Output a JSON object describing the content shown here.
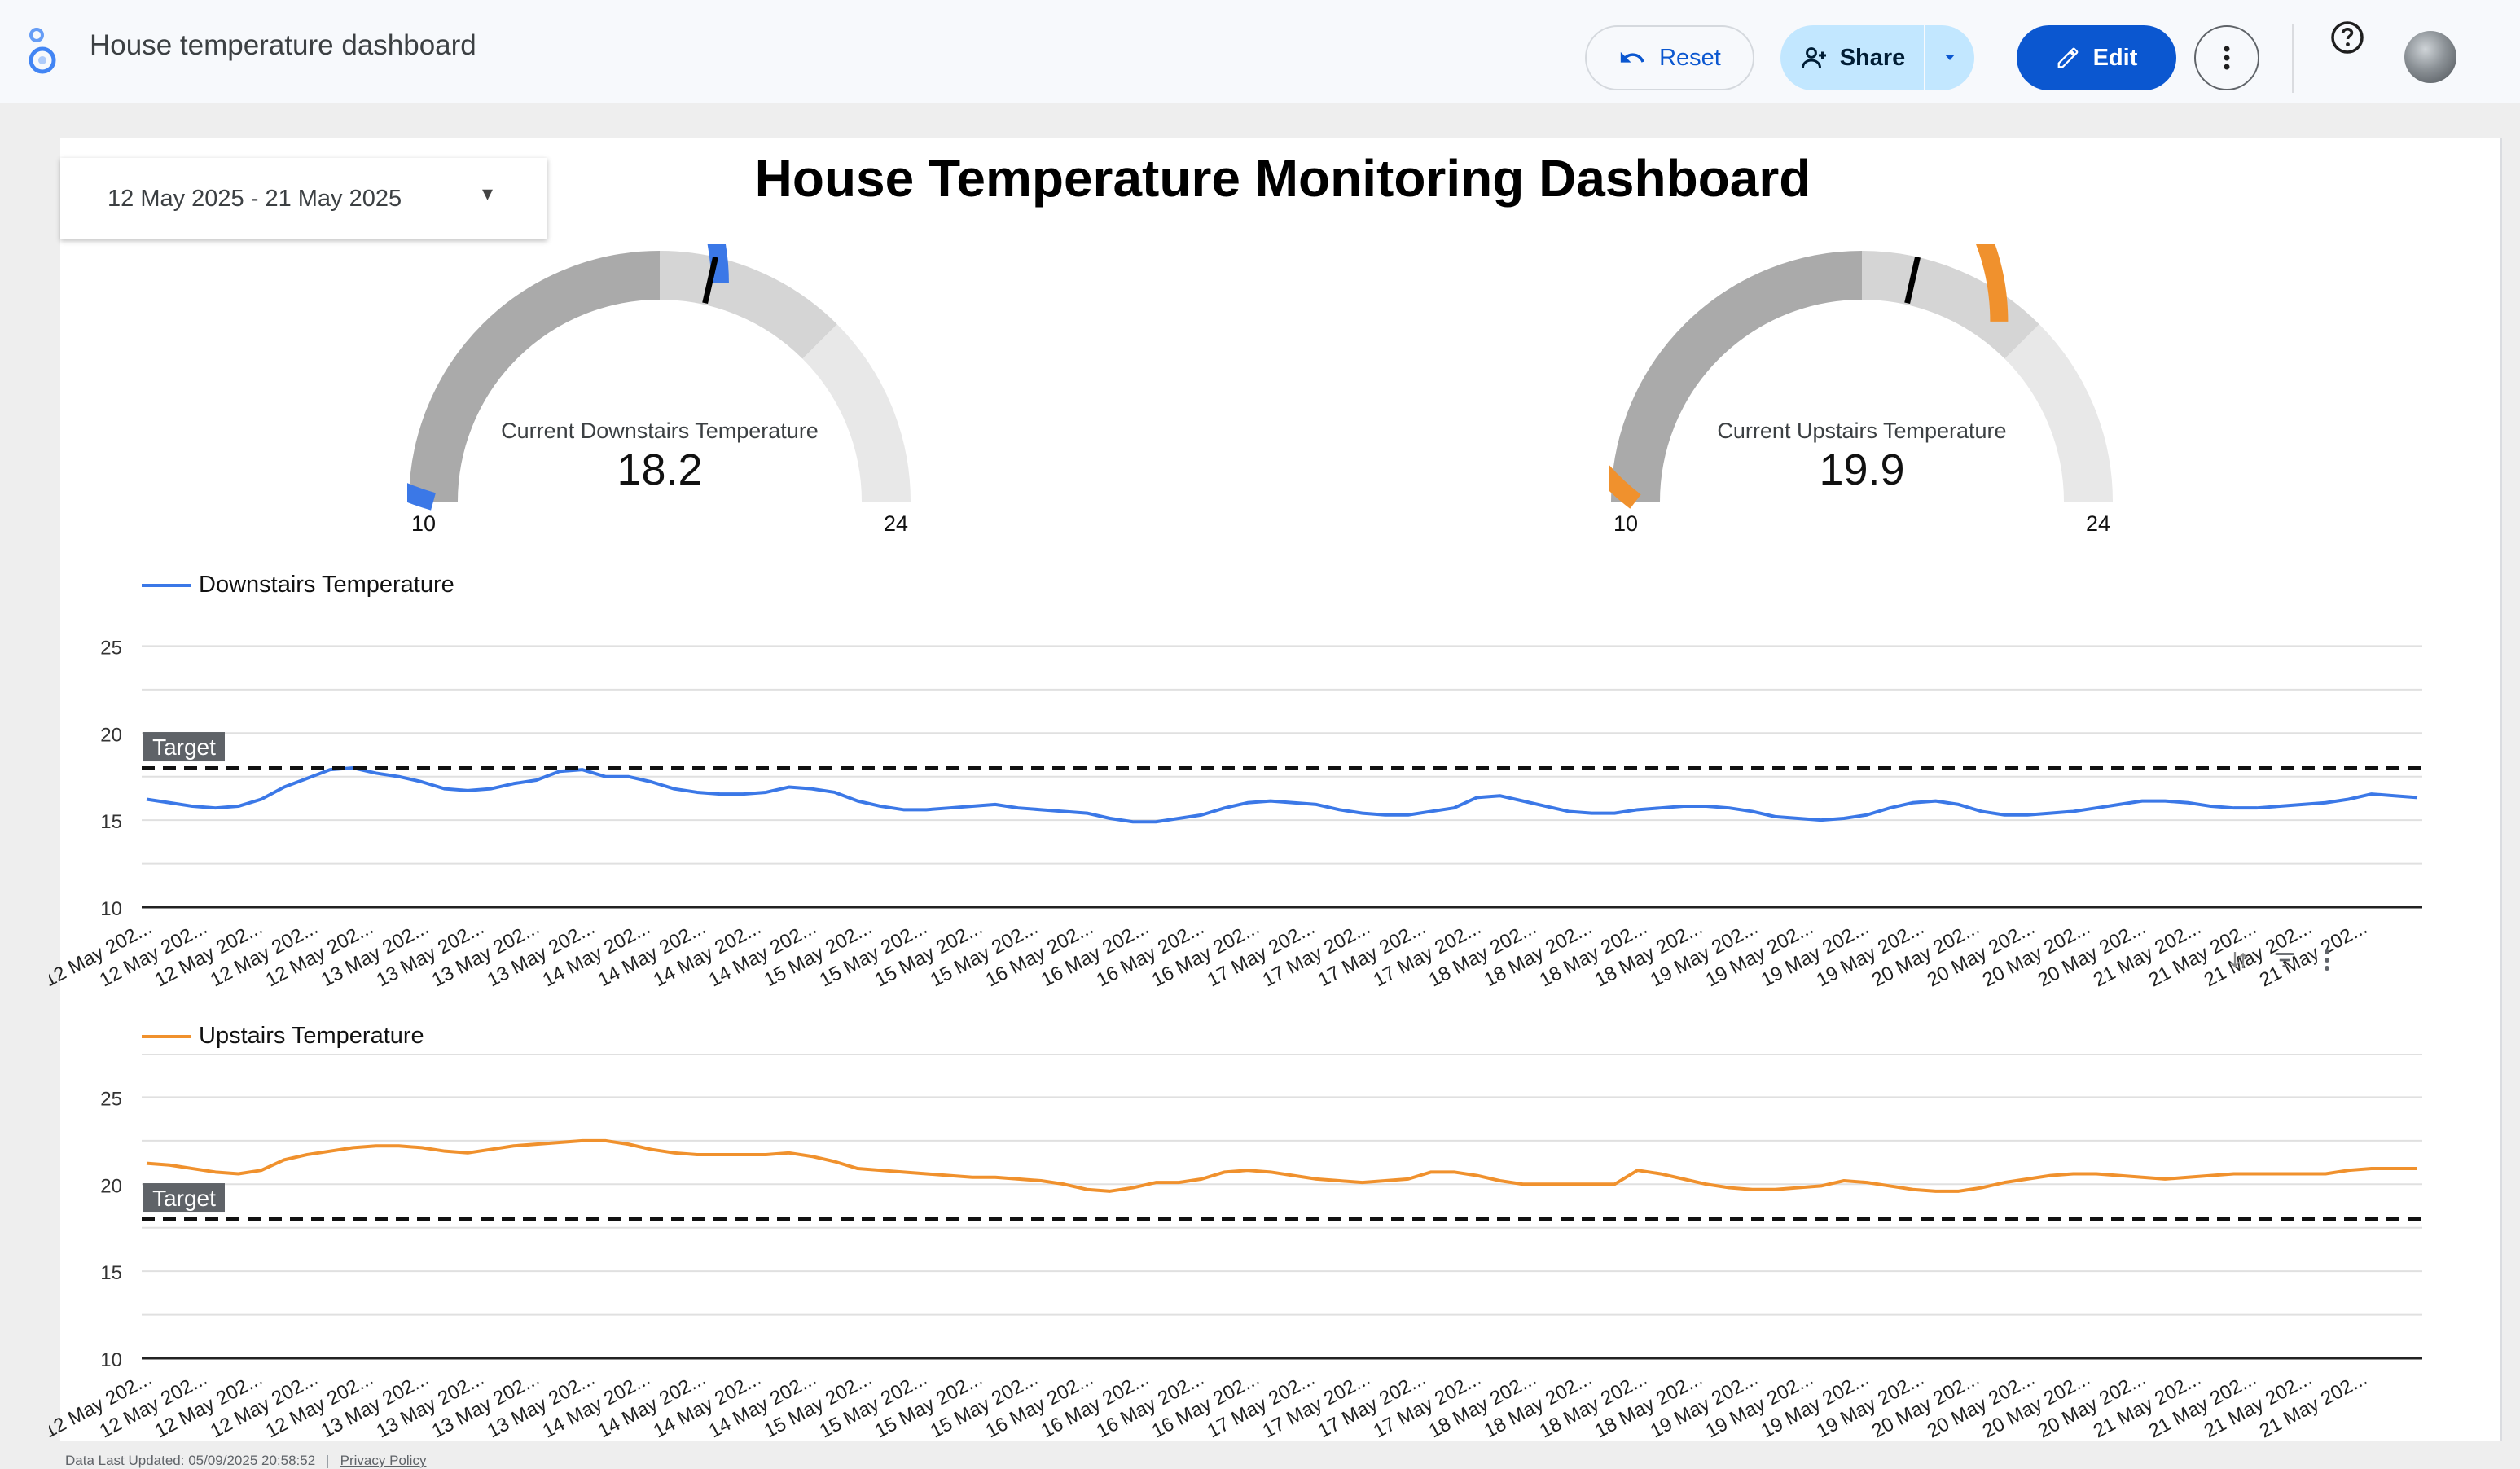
{
  "app": {
    "title": "House temperature dashboard",
    "buttons": {
      "reset": "Reset",
      "share": "Share",
      "edit": "Edit"
    },
    "icons": [
      "looker-studio-logo-icon",
      "undo-icon",
      "person-add-icon",
      "caret-down-icon",
      "pencil-icon",
      "more-vert-icon",
      "help-icon",
      "avatar"
    ]
  },
  "report": {
    "title": "House Temperature Monitoring Dashboard",
    "date_range": "12 May 2025 - 21 May 2025",
    "footer": {
      "updated": "Data Last Updated: 05/09/2025 20:58:52",
      "privacy": "Privacy Policy"
    }
  },
  "gauges": [
    {
      "label": "Current Downstairs Temperature",
      "value": 18.2,
      "value_text": "18.2",
      "min": 10,
      "max": 24,
      "min_text": "10",
      "max_text": "24",
      "target": 18.0,
      "color": "#3b78e7"
    },
    {
      "label": "Current Upstairs Temperature",
      "value": 19.9,
      "value_text": "19.9",
      "min": 10,
      "max": 24,
      "min_text": "10",
      "max_text": "24",
      "target": 18.0,
      "color": "#f0912d"
    }
  ],
  "chart_data": [
    {
      "type": "line",
      "series": [
        {
          "name": "Downstairs Temperature",
          "color": "#3b78e7",
          "values": [
            16.2,
            16.0,
            15.8,
            15.7,
            15.8,
            16.2,
            16.9,
            17.4,
            17.9,
            18.0,
            17.7,
            17.5,
            17.2,
            16.8,
            16.7,
            16.8,
            17.1,
            17.3,
            17.8,
            17.9,
            17.5,
            17.5,
            17.2,
            16.8,
            16.6,
            16.5,
            16.5,
            16.6,
            16.9,
            16.8,
            16.6,
            16.1,
            15.8,
            15.6,
            15.6,
            15.7,
            15.8,
            15.9,
            15.7,
            15.6,
            15.5,
            15.4,
            15.1,
            14.9,
            14.9,
            15.1,
            15.3,
            15.7,
            16.0,
            16.1,
            16.0,
            15.9,
            15.6,
            15.4,
            15.3,
            15.3,
            15.5,
            15.7,
            16.3,
            16.4,
            16.1,
            15.8,
            15.5,
            15.4,
            15.4,
            15.6,
            15.7,
            15.8,
            15.8,
            15.7,
            15.5,
            15.2,
            15.1,
            15.0,
            15.1,
            15.3,
            15.7,
            16.0,
            16.1,
            15.9,
            15.5,
            15.3,
            15.3,
            15.4,
            15.5,
            15.7,
            15.9,
            16.1,
            16.1,
            16.0,
            15.8,
            15.7,
            15.7,
            15.8,
            15.9,
            16.0,
            16.2,
            16.5,
            16.4,
            16.3
          ]
        }
      ],
      "target": 18,
      "target_label": "Target",
      "ylim": [
        10,
        25
      ],
      "yticks": [
        "25",
        "20",
        "15",
        "10"
      ],
      "x_tick_labels": [
        "12 May 202...",
        "12 May 202...",
        "12 May 202...",
        "12 May 202...",
        "12 May 202...",
        "13 May 202...",
        "13 May 202...",
        "13 May 202...",
        "13 May 202...",
        "14 May 202...",
        "14 May 202...",
        "14 May 202...",
        "14 May 202...",
        "15 May 202...",
        "15 May 202...",
        "15 May 202...",
        "15 May 202...",
        "16 May 202...",
        "16 May 202...",
        "16 May 202...",
        "16 May 202...",
        "17 May 202...",
        "17 May 202...",
        "17 May 202...",
        "17 May 202...",
        "18 May 202...",
        "18 May 202...",
        "18 May 202...",
        "18 May 202...",
        "19 May 202...",
        "19 May 202...",
        "19 May 202...",
        "19 May 202...",
        "20 May 202...",
        "20 May 202...",
        "20 May 202...",
        "20 May 202...",
        "21 May 202...",
        "21 May 202...",
        "21 May 202...",
        "21 May 202..."
      ]
    },
    {
      "type": "line",
      "series": [
        {
          "name": "Upstairs Temperature",
          "color": "#f0912d",
          "values": [
            21.2,
            21.1,
            20.9,
            20.7,
            20.6,
            20.8,
            21.4,
            21.7,
            21.9,
            22.1,
            22.2,
            22.2,
            22.1,
            21.9,
            21.8,
            22.0,
            22.2,
            22.3,
            22.4,
            22.5,
            22.5,
            22.3,
            22.0,
            21.8,
            21.7,
            21.7,
            21.7,
            21.7,
            21.8,
            21.6,
            21.3,
            20.9,
            20.8,
            20.7,
            20.6,
            20.5,
            20.4,
            20.4,
            20.3,
            20.2,
            20.0,
            19.7,
            19.6,
            19.8,
            20.1,
            20.1,
            20.3,
            20.7,
            20.8,
            20.7,
            20.5,
            20.3,
            20.2,
            20.1,
            20.2,
            20.3,
            20.7,
            20.7,
            20.5,
            20.2,
            20.0,
            20.0,
            20.0,
            20.0,
            20.0,
            20.8,
            20.6,
            20.3,
            20.0,
            19.8,
            19.7,
            19.7,
            19.8,
            19.9,
            20.2,
            20.1,
            19.9,
            19.7,
            19.6,
            19.6,
            19.8,
            20.1,
            20.3,
            20.5,
            20.6,
            20.6,
            20.5,
            20.4,
            20.3,
            20.4,
            20.5,
            20.6,
            20.6,
            20.6,
            20.6,
            20.6,
            20.8,
            20.9,
            20.9,
            20.9
          ]
        }
      ],
      "target": 18,
      "target_label": "Target",
      "ylim": [
        10,
        25
      ],
      "yticks": [
        "25",
        "20",
        "15",
        "10"
      ],
      "x_tick_labels": [
        "12 May 202...",
        "12 May 202...",
        "12 May 202...",
        "12 May 202...",
        "12 May 202...",
        "13 May 202...",
        "13 May 202...",
        "13 May 202...",
        "13 May 202...",
        "14 May 202...",
        "14 May 202...",
        "14 May 202...",
        "14 May 202...",
        "15 May 202...",
        "15 May 202...",
        "15 May 202...",
        "15 May 202...",
        "16 May 202...",
        "16 May 202...",
        "16 May 202...",
        "16 May 202...",
        "17 May 202...",
        "17 May 202...",
        "17 May 202...",
        "17 May 202...",
        "18 May 202...",
        "18 May 202...",
        "18 May 202...",
        "18 May 202...",
        "19 May 202...",
        "19 May 202...",
        "19 May 202...",
        "19 May 202...",
        "20 May 202...",
        "20 May 202...",
        "20 May 202...",
        "20 May 202...",
        "21 May 202...",
        "21 May 202...",
        "21 May 202...",
        "21 May 202..."
      ]
    }
  ]
}
